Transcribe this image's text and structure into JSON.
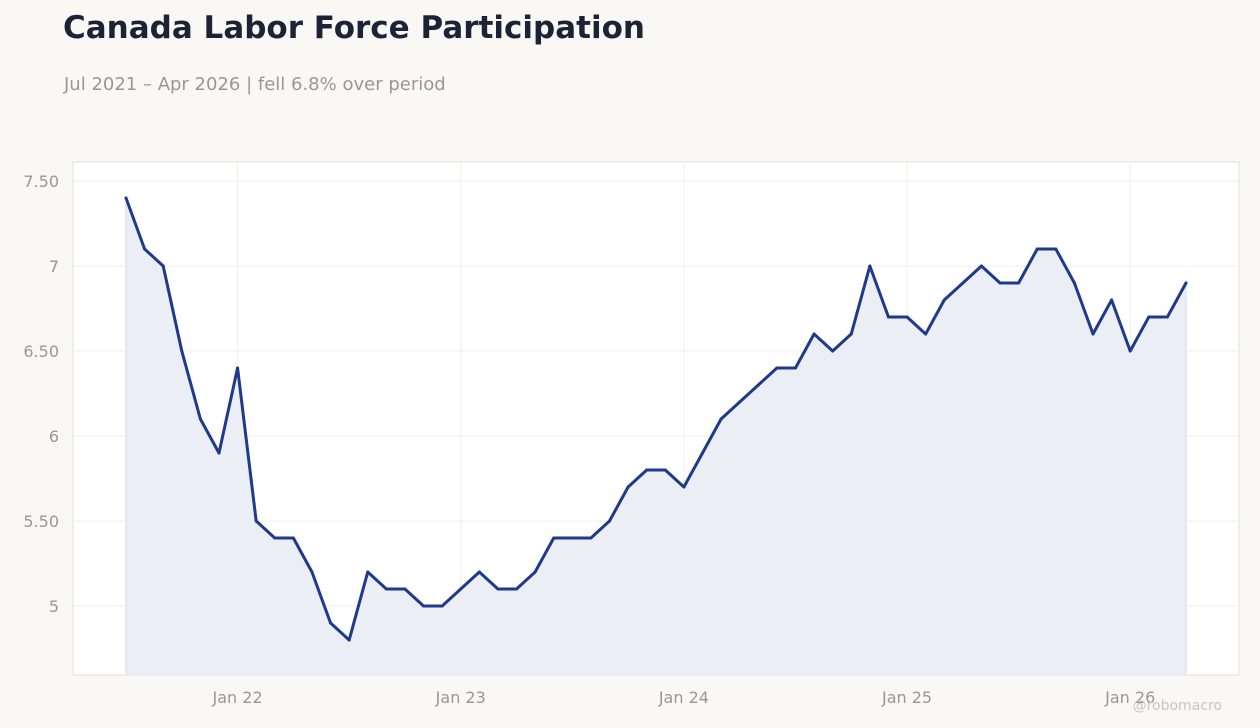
{
  "header": {
    "title": "Canada Labor Force Participation",
    "subtitle": "Jul 2021 – Apr 2026 | fell 6.8% over period"
  },
  "watermark": "@robomacro",
  "colors": {
    "background": "#f9f8f5",
    "plot_background": "#ffffff",
    "line": "#1f3a8a",
    "area_fill": "#eceef5",
    "grid": "#f0efec",
    "text_muted": "#9a9792"
  },
  "chart_data": {
    "type": "area",
    "title": "Canada Labor Force Participation",
    "subtitle": "Jul 2021 – Apr 2026 | fell 6.8% over period",
    "xlabel": "",
    "ylabel": "",
    "x_start": "2021-07",
    "x_end": "2026-04",
    "x": [
      "2021-07",
      "2021-08",
      "2021-09",
      "2021-10",
      "2021-11",
      "2021-12",
      "2022-01",
      "2022-02",
      "2022-03",
      "2022-04",
      "2022-05",
      "2022-06",
      "2022-07",
      "2022-08",
      "2022-09",
      "2022-10",
      "2022-11",
      "2022-12",
      "2023-01",
      "2023-02",
      "2023-03",
      "2023-04",
      "2023-05",
      "2023-06",
      "2023-07",
      "2023-08",
      "2023-09",
      "2023-10",
      "2023-11",
      "2023-12",
      "2024-01",
      "2024-02",
      "2024-03",
      "2024-04",
      "2024-05",
      "2024-06",
      "2024-07",
      "2024-08",
      "2024-09",
      "2024-10",
      "2024-11",
      "2024-12",
      "2025-01",
      "2025-02",
      "2025-03",
      "2025-04",
      "2025-05",
      "2025-06",
      "2025-07",
      "2025-08",
      "2025-09",
      "2025-10",
      "2025-11",
      "2025-12",
      "2026-01",
      "2026-02",
      "2026-03",
      "2026-04"
    ],
    "series": [
      {
        "values": [
          7.4,
          7.1,
          7.0,
          6.5,
          6.1,
          5.9,
          6.4,
          5.5,
          5.4,
          5.4,
          5.2,
          4.9,
          4.8,
          5.2,
          5.1,
          5.1,
          5.0,
          5.0,
          5.1,
          5.2,
          5.1,
          5.1,
          5.2,
          5.4,
          5.4,
          5.4,
          5.5,
          5.7,
          5.8,
          5.8,
          5.7,
          5.9,
          6.1,
          6.2,
          6.3,
          6.4,
          6.4,
          6.6,
          6.5,
          6.6,
          7.0,
          6.7,
          6.7,
          6.6,
          6.8,
          6.9,
          7.0,
          6.9,
          6.9,
          7.1,
          7.1,
          6.9,
          6.6,
          6.8,
          6.5,
          6.7,
          6.7,
          6.9
        ]
      }
    ],
    "ylim": [
      4.6,
      7.6
    ],
    "y_ticks": [
      5,
      5.5,
      6,
      6.5,
      7,
      7.5
    ],
    "y_tick_labels": [
      "5",
      "5.50",
      "6",
      "6.50",
      "7",
      "7.50"
    ],
    "x_ticks": [
      "2022-01",
      "2023-01",
      "2024-01",
      "2025-01",
      "2026-01"
    ],
    "x_tick_labels": [
      "Jan 22",
      "Jan 23",
      "Jan 24",
      "Jan 25",
      "Jan 26"
    ],
    "grid": true,
    "legend": "none"
  }
}
